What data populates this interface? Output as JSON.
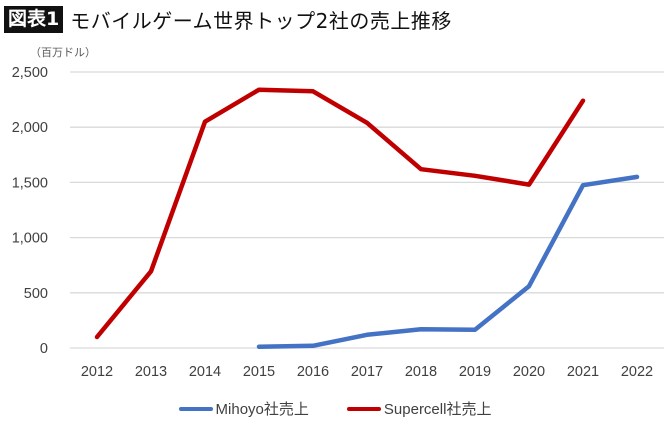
{
  "header": {
    "badge": "図表1",
    "title": "モバイルゲーム世界トップ2社の売上推移"
  },
  "unit_label": "（百万ドル）",
  "colors": {
    "mihoyo": "#4472C4",
    "supercell": "#C00000",
    "grid": "#D9D9D9"
  },
  "legend": {
    "items": [
      {
        "label": "Mihoyo社売上",
        "color": "#4472C4"
      },
      {
        "label": "Supercell社売上",
        "color": "#C00000"
      }
    ]
  },
  "chart_data": {
    "type": "line",
    "title": "モバイルゲーム世界トップ2社の売上推移",
    "xlabel": "",
    "ylabel": "（百万ドル）",
    "categories": [
      "2012",
      "2013",
      "2014",
      "2015",
      "2016",
      "2017",
      "2018",
      "2019",
      "2020",
      "2021",
      "2022"
    ],
    "y_ticks": [
      "0",
      "500",
      "1,000",
      "1,500",
      "2,000",
      "2,500"
    ],
    "ylim": [
      0,
      2500
    ],
    "grid": true,
    "legend_position": "bottom",
    "series": [
      {
        "name": "Mihoyo社売上",
        "color": "#4472C4",
        "values": [
          null,
          null,
          null,
          12,
          20,
          120,
          170,
          165,
          560,
          1475,
          1550
        ]
      },
      {
        "name": "Supercell社売上",
        "color": "#C00000",
        "values": [
          100,
          695,
          2050,
          2340,
          2325,
          2040,
          1620,
          1560,
          1480,
          2240,
          null
        ]
      }
    ]
  }
}
